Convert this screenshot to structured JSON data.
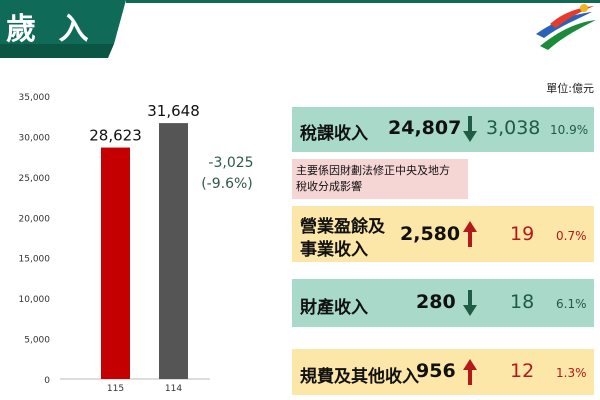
{
  "header": {
    "title": "歲 入"
  },
  "unit_label": "單位:億元",
  "colors": {
    "banner": "#0f6b58",
    "bar_115": "#c40000",
    "bar_114": "#555555",
    "up_arrow": "#b3191a",
    "down_arrow": "#1f5b45",
    "teal_box": "#a9d9c9",
    "yellow_box": "#fde7a8",
    "note_box": "#f6d5d5"
  },
  "chart_data": {
    "type": "bar",
    "categories": [
      "115",
      "114"
    ],
    "values": [
      28623,
      31648
    ],
    "value_labels": [
      "28,623",
      "31,648"
    ],
    "ylim": [
      0,
      35000
    ],
    "yticks": [
      0,
      5000,
      10000,
      15000,
      20000,
      25000,
      30000,
      35000
    ],
    "ytick_labels": [
      "0",
      "5,000",
      "10,000",
      "15,000",
      "20,000",
      "25,000",
      "30,000",
      "35,000"
    ],
    "annotation": {
      "change": "-3,025",
      "pct": "(-9.6%)"
    },
    "grid": false
  },
  "items": [
    {
      "label": "稅課收入",
      "amount": "24,807",
      "direction": "down",
      "change": "3,038",
      "pct": "10.9%"
    },
    {
      "note": [
        "主要係因財劃法修正中央及地方",
        "稅收分成影響"
      ]
    },
    {
      "label_line1": "營業盈餘及",
      "label_line2": "事業收入",
      "amount": "2,580",
      "direction": "up",
      "change": "19",
      "pct": "0.7%"
    },
    {
      "label": "財產收入",
      "amount": "280",
      "direction": "down",
      "change": "18",
      "pct": "6.1%"
    },
    {
      "label": "規費及其他收入",
      "amount": "956",
      "direction": "up",
      "change": "12",
      "pct": "1.3%"
    }
  ]
}
